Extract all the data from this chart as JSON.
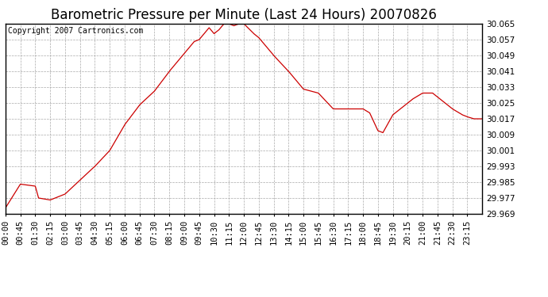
{
  "title": "Barometric Pressure per Minute (Last 24 Hours) 20070826",
  "copyright": "Copyright 2007 Cartronics.com",
  "line_color": "#cc0000",
  "bg_color": "#ffffff",
  "plot_bg_color": "#ffffff",
  "grid_color": "#aaaaaa",
  "ylim": [
    29.969,
    30.065
  ],
  "yticks": [
    29.969,
    29.977,
    29.985,
    29.993,
    30.001,
    30.009,
    30.017,
    30.025,
    30.033,
    30.041,
    30.049,
    30.057,
    30.065
  ],
  "xtick_labels": [
    "00:00",
    "00:45",
    "01:30",
    "02:15",
    "03:00",
    "03:45",
    "04:30",
    "05:15",
    "06:00",
    "06:45",
    "07:30",
    "08:15",
    "09:00",
    "09:45",
    "10:30",
    "11:15",
    "12:00",
    "12:45",
    "13:30",
    "14:15",
    "15:00",
    "15:45",
    "16:30",
    "17:15",
    "18:00",
    "18:45",
    "19:30",
    "20:15",
    "21:00",
    "21:45",
    "22:30",
    "23:15"
  ],
  "title_fontsize": 12,
  "tick_fontsize": 7.5,
  "copyright_fontsize": 7,
  "key_times": [
    0,
    45,
    90,
    100,
    135,
    180,
    225,
    270,
    315,
    360,
    405,
    450,
    495,
    510,
    540,
    570,
    585,
    615,
    630,
    645,
    660,
    675,
    690,
    705,
    720,
    750,
    765,
    810,
    855,
    900,
    945,
    990,
    1035,
    1080,
    1100,
    1125,
    1140,
    1170,
    1215,
    1230,
    1260,
    1290,
    1305,
    1350,
    1380,
    1395,
    1415,
    1440
  ],
  "key_vals": [
    29.972,
    29.984,
    29.983,
    29.977,
    29.976,
    29.979,
    29.986,
    29.993,
    30.001,
    30.014,
    30.024,
    30.031,
    30.041,
    30.044,
    30.05,
    30.056,
    30.057,
    30.063,
    30.06,
    30.062,
    30.065,
    30.065,
    30.064,
    30.065,
    30.065,
    30.06,
    30.058,
    30.049,
    30.041,
    30.032,
    30.03,
    30.022,
    30.022,
    30.022,
    30.02,
    30.011,
    30.01,
    30.019,
    30.025,
    30.027,
    30.03,
    30.03,
    30.028,
    30.022,
    30.019,
    30.018,
    30.017,
    30.017
  ]
}
